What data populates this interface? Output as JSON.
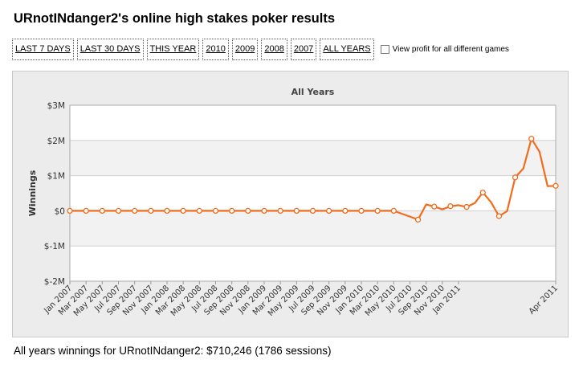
{
  "page": {
    "title": "URnotINdanger2's online high stakes poker results"
  },
  "filters": {
    "buttons": [
      "LAST 7 DAYS",
      "LAST 30 DAYS",
      "THIS YEAR",
      "2010",
      "2009",
      "2008",
      "2007",
      "ALL YEARS"
    ],
    "checkbox_label": "View profit for all different games",
    "checkbox_checked": false
  },
  "summary": {
    "prefix": "All years winnings for URnotINdanger2:",
    "amount": "$710,246",
    "sessions": "(1786 sessions)"
  },
  "chart_data": {
    "type": "line",
    "title": "All Years",
    "ylabel": "Winnings",
    "xlabel": "",
    "ylim": [
      -2000000,
      3000000
    ],
    "yticks": [
      3000000,
      2000000,
      1000000,
      0,
      -1000000,
      -2000000
    ],
    "ytick_labels": [
      "$3M",
      "$2M",
      "$1M",
      "$0",
      "$-1M",
      "$-2M"
    ],
    "xtick_labels": [
      "Jan 2007",
      "Mar 2007",
      "May 2007",
      "Jul 2007",
      "Sep 2007",
      "Nov 2007",
      "Jan 2008",
      "Mar 2008",
      "May 2008",
      "Jul 2008",
      "Sep 2008",
      "Nov 2008",
      "Jan 2009",
      "Mar 2009",
      "May 2009",
      "Jul 2009",
      "Sep 2009",
      "Nov 2009",
      "Jan 2010",
      "Mar 2010",
      "May 2010",
      "Jul 2010",
      "Sep 2010",
      "Nov 2010",
      "Jan 2011",
      "Apr 2011"
    ],
    "x_unit": "months since Jan 2007",
    "line_color": "#f26c1c",
    "grid": true,
    "points": [
      [
        0,
        0
      ],
      [
        2,
        0
      ],
      [
        4,
        0
      ],
      [
        6,
        0
      ],
      [
        8,
        0
      ],
      [
        10,
        0
      ],
      [
        12,
        0
      ],
      [
        14,
        0
      ],
      [
        16,
        0
      ],
      [
        18,
        0
      ],
      [
        20,
        0
      ],
      [
        22,
        0
      ],
      [
        24,
        0
      ],
      [
        26,
        0
      ],
      [
        28,
        0
      ],
      [
        30,
        0
      ],
      [
        32,
        0
      ],
      [
        34,
        0
      ],
      [
        36,
        0
      ],
      [
        38,
        0
      ],
      [
        40,
        0
      ],
      [
        43,
        -250000
      ],
      [
        44,
        180000
      ],
      [
        45,
        120000
      ],
      [
        46,
        40000
      ],
      [
        47,
        130000
      ],
      [
        48,
        160000
      ],
      [
        49,
        110000
      ],
      [
        50,
        220000
      ],
      [
        51,
        520000
      ],
      [
        52,
        250000
      ],
      [
        53,
        -150000
      ],
      [
        54,
        -10000
      ],
      [
        55,
        950000
      ],
      [
        56,
        1200000
      ],
      [
        57,
        2050000
      ],
      [
        58,
        1680000
      ],
      [
        59,
        700000
      ],
      [
        60,
        710000
      ]
    ],
    "markers_at": [
      0,
      2,
      4,
      6,
      8,
      10,
      12,
      14,
      16,
      18,
      20,
      22,
      24,
      26,
      28,
      30,
      32,
      34,
      36,
      38,
      40,
      43,
      45,
      47,
      49,
      51,
      53,
      55,
      57,
      60
    ]
  }
}
